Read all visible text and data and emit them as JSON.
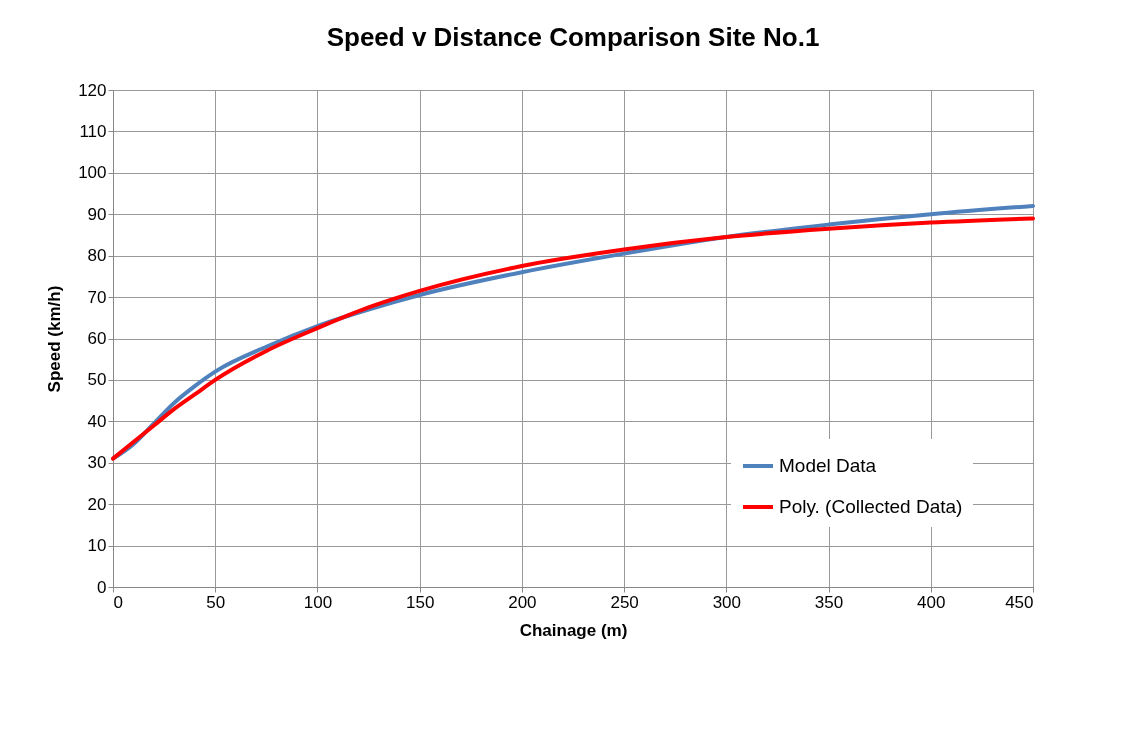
{
  "chart_data": {
    "type": "line",
    "title": "Speed v Distance Comparison Site No.1",
    "xlabel": "Chainage (m)",
    "ylabel": "Speed (km/h)",
    "xlim": [
      0,
      450
    ],
    "xticks": [
      0,
      50,
      100,
      150,
      200,
      250,
      300,
      350,
      400,
      450
    ],
    "ylim": [
      0,
      120
    ],
    "yticks": [
      0,
      10,
      20,
      30,
      40,
      50,
      60,
      70,
      80,
      90,
      100,
      110,
      120
    ],
    "grid": true,
    "legend": "bottom right",
    "marker": "none",
    "line_style": "solid",
    "series": [
      {
        "name": "Model Data",
        "color": "#4f81bd",
        "x": [
          0,
          10,
          20,
          30,
          40,
          50,
          75,
          100,
          125,
          150,
          200,
          250,
          300,
          350,
          400,
          450
        ],
        "values": [
          31,
          34.5,
          39.5,
          44.5,
          48.5,
          52,
          58,
          63,
          67,
          70.5,
          76,
          80.5,
          84.5,
          87.5,
          90,
          92
        ]
      },
      {
        "name": "Poly. (Collected Data)",
        "color": "#ff0000",
        "x": [
          0,
          10,
          20,
          30,
          40,
          50,
          75,
          100,
          125,
          150,
          200,
          250,
          300,
          350,
          400,
          450
        ],
        "values": [
          31,
          35,
          39,
          43,
          46.5,
          50,
          57,
          62.5,
          67.5,
          71.5,
          77.5,
          81.5,
          84.5,
          86.5,
          88,
          89
        ]
      }
    ]
  }
}
